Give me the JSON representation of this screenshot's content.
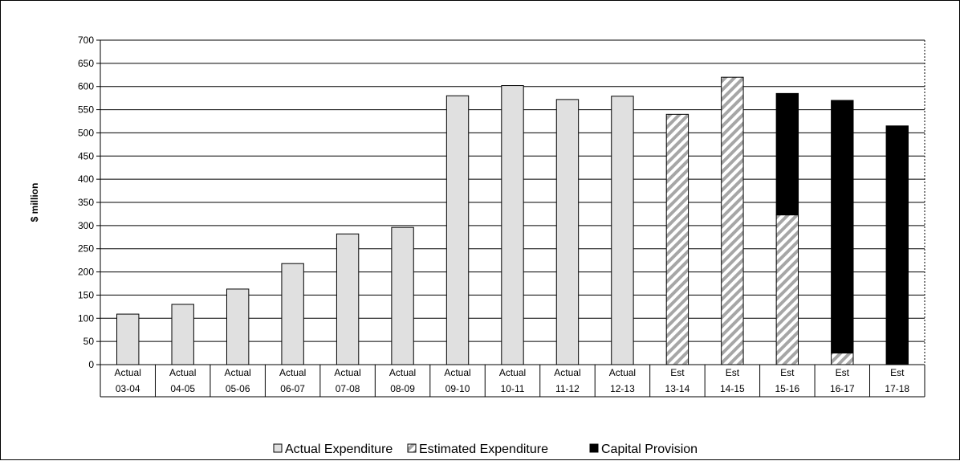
{
  "chart_data": {
    "type": "bar",
    "stacked": true,
    "title": "",
    "xlabel": "",
    "ylabel": "$ million",
    "ylim": [
      0,
      700
    ],
    "ytick_step": 50,
    "grid": true,
    "legend_position": "bottom",
    "categories": [
      {
        "top": "Actual",
        "bottom": "03-04"
      },
      {
        "top": "Actual",
        "bottom": "04-05"
      },
      {
        "top": "Actual",
        "bottom": "05-06"
      },
      {
        "top": "Actual",
        "bottom": "06-07"
      },
      {
        "top": "Actual",
        "bottom": "07-08"
      },
      {
        "top": "Actual",
        "bottom": "08-09"
      },
      {
        "top": "Actual",
        "bottom": "09-10"
      },
      {
        "top": "Actual",
        "bottom": "10-11"
      },
      {
        "top": "Actual",
        "bottom": "11-12"
      },
      {
        "top": "Actual",
        "bottom": "12-13"
      },
      {
        "top": "Est",
        "bottom": "13-14"
      },
      {
        "top": "Est",
        "bottom": "14-15"
      },
      {
        "top": "Est",
        "bottom": "15-16"
      },
      {
        "top": "Est",
        "bottom": "16-17"
      },
      {
        "top": "Est",
        "bottom": "17-18"
      }
    ],
    "series": [
      {
        "name": "Actual Expenditure",
        "key": "actual",
        "color": "#e0e0e0",
        "values": [
          109,
          130,
          163,
          218,
          282,
          296,
          580,
          602,
          572,
          579,
          0,
          0,
          0,
          0,
          0
        ]
      },
      {
        "name": "Estimated Expenditure",
        "key": "estimated",
        "color": "#a6a6a6",
        "values": [
          0,
          0,
          0,
          0,
          0,
          0,
          0,
          0,
          0,
          0,
          540,
          620,
          323,
          25,
          0
        ]
      },
      {
        "name": "Capital Provision",
        "key": "capital",
        "color": "#000000",
        "values": [
          0,
          0,
          0,
          0,
          0,
          0,
          0,
          0,
          0,
          0,
          0,
          0,
          262,
          545,
          515
        ]
      }
    ]
  }
}
